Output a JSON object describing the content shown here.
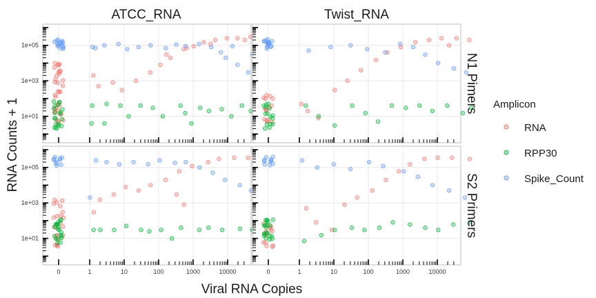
{
  "chart_data": {
    "type": "scatter",
    "xlabel": "Viral RNA Copies",
    "ylabel": "RNA Counts + 1",
    "x_scale": "log10 (with 0 shown as a separate category)",
    "y_scale": "log10",
    "x_tick_labels": [
      "0",
      "1",
      "10",
      "100",
      "1000",
      "10000"
    ],
    "y_tick_labels": [
      "1e+01",
      "1e+03",
      "1e+05"
    ],
    "ylim": [
      0.5,
      1000000
    ],
    "grid": true,
    "columns": [
      "ATCC_RNA",
      "Twist_RNA"
    ],
    "rows": [
      "N1 Pimers",
      "S2 Primers"
    ],
    "legend": {
      "title": "Amplicon",
      "position": "right",
      "items": [
        {
          "name": "RNA",
          "color": "#F8766D"
        },
        {
          "name": "RPP30",
          "color": "#00BA38"
        },
        {
          "name": "Spike_Count",
          "color": "#619CFF"
        }
      ]
    },
    "panels": [
      {
        "column": "ATCC_RNA",
        "row": "N1 Pimers",
        "series": [
          {
            "name": "RNA",
            "points": [
              [
                0,
                8000
              ],
              [
                0,
                2500
              ],
              [
                0,
                800
              ],
              [
                0,
                200
              ],
              [
                0,
                40
              ],
              [
                0,
                15
              ],
              [
                0,
                5
              ],
              [
                1.2,
                2000
              ],
              [
                2,
                500
              ],
              [
                5,
                800
              ],
              [
                8,
                300
              ],
              [
                20,
                1000
              ],
              [
                50,
                3000
              ],
              [
                100,
                8000
              ],
              [
                200,
                20000
              ],
              [
                500,
                60000
              ],
              [
                1000,
                90000
              ],
              [
                2000,
                150000
              ],
              [
                5000,
                200000
              ],
              [
                10000,
                250000
              ],
              [
                20000,
                250000
              ],
              [
                50000,
                300000
              ],
              [
                80000,
                280000
              ],
              [
                30000,
                200000
              ],
              [
                3000,
                120000
              ],
              [
                700,
                70000
              ],
              [
                150,
                30000
              ]
            ]
          },
          {
            "name": "RPP30",
            "points": [
              [
                0,
                60
              ],
              [
                0,
                20
              ],
              [
                0,
                5
              ],
              [
                0,
                2
              ],
              [
                1.3,
                40
              ],
              [
                1.3,
                4
              ],
              [
                3,
                50
              ],
              [
                3,
                4
              ],
              [
                8,
                40
              ],
              [
                15,
                10
              ],
              [
                30,
                40
              ],
              [
                70,
                30
              ],
              [
                150,
                10
              ],
              [
                400,
                40
              ],
              [
                600,
                15
              ],
              [
                1500,
                30
              ],
              [
                3000,
                20
              ],
              [
                6000,
                25
              ],
              [
                12000,
                10
              ],
              [
                25000,
                40
              ],
              [
                50000,
                20
              ],
              [
                80000,
                8
              ],
              [
                1000,
                4
              ]
            ]
          },
          {
            "name": "Spike_Count",
            "points": [
              [
                0,
                120000
              ],
              [
                0,
                150000
              ],
              [
                0,
                90000
              ],
              [
                1.1,
                80000
              ],
              [
                1.5,
                70000
              ],
              [
                3,
                100000
              ],
              [
                6,
                120000
              ],
              [
                12,
                60000
              ],
              [
                25,
                80000
              ],
              [
                60,
                100000
              ],
              [
                150,
                70000
              ],
              [
                300,
                110000
              ],
              [
                600,
                90000
              ],
              [
                1500,
                120000
              ],
              [
                3000,
                80000
              ],
              [
                6000,
                40000
              ],
              [
                10000,
                20000
              ],
              [
                20000,
                8000
              ],
              [
                40000,
                3000
              ],
              [
                80000,
                2000
              ],
              [
                50000,
                30000
              ],
              [
                15000,
                90000
              ]
            ]
          }
        ]
      },
      {
        "column": "Twist_RNA",
        "row": "N1 Pimers",
        "series": [
          {
            "name": "RNA",
            "points": [
              [
                0,
                100
              ],
              [
                0,
                30
              ],
              [
                0,
                5
              ],
              [
                1.2,
                50
              ],
              [
                2,
                20
              ],
              [
                4,
                8
              ],
              [
                10,
                300
              ],
              [
                25,
                1000
              ],
              [
                60,
                4000
              ],
              [
                150,
                15000
              ],
              [
                400,
                40000
              ],
              [
                900,
                80000
              ],
              [
                2500,
                150000
              ],
              [
                6000,
                200000
              ],
              [
                15000,
                250000
              ],
              [
                40000,
                250000
              ],
              [
                80000,
                200000
              ],
              [
                20000,
                100000
              ]
            ]
          },
          {
            "name": "RPP30",
            "points": [
              [
                0,
                40
              ],
              [
                0,
                10
              ],
              [
                0,
                3
              ],
              [
                1.5,
                40
              ],
              [
                4,
                10
              ],
              [
                10,
                3
              ],
              [
                30,
                40
              ],
              [
                80,
                15
              ],
              [
                200,
                5
              ],
              [
                500,
                40
              ],
              [
                1200,
                30
              ],
              [
                3000,
                40
              ],
              [
                8000,
                20
              ],
              [
                20000,
                40
              ],
              [
                50000,
                15
              ],
              [
                90000,
                30
              ]
            ]
          },
          {
            "name": "Spike_Count",
            "points": [
              [
                0,
                120000
              ],
              [
                0,
                150000
              ],
              [
                0,
                100000
              ],
              [
                2,
                50000
              ],
              [
                8,
                80000
              ],
              [
                30,
                100000
              ],
              [
                100,
                60000
              ],
              [
                300,
                40000
              ],
              [
                800,
                120000
              ],
              [
                2000,
                80000
              ],
              [
                5000,
                30000
              ],
              [
                12000,
                10000
              ],
              [
                30000,
                5000
              ],
              [
                70000,
                3000
              ]
            ]
          }
        ]
      },
      {
        "column": "ATCC_RNA",
        "row": "S2 Primers",
        "series": [
          {
            "name": "RNA",
            "points": [
              [
                0,
                1000
              ],
              [
                0,
                200
              ],
              [
                0,
                50
              ],
              [
                0,
                10
              ],
              [
                0,
                3
              ],
              [
                1.2,
                300
              ],
              [
                2,
                1500
              ],
              [
                5,
                3000
              ],
              [
                10,
                8000
              ],
              [
                25,
                5000
              ],
              [
                60,
                10000
              ],
              [
                150,
                20000
              ],
              [
                400,
                60000
              ],
              [
                1000,
                120000
              ],
              [
                2500,
                200000
              ],
              [
                6000,
                300000
              ],
              [
                15000,
                350000
              ],
              [
                40000,
                350000
              ],
              [
                80000,
                300000
              ],
              [
                300,
                3000
              ],
              [
                600,
                800
              ]
            ]
          },
          {
            "name": "RPP30",
            "points": [
              [
                0,
                80
              ],
              [
                0,
                40
              ],
              [
                0,
                20
              ],
              [
                0,
                8
              ],
              [
                1.2,
                30
              ],
              [
                2,
                30
              ],
              [
                5,
                30
              ],
              [
                12,
                50
              ],
              [
                30,
                30
              ],
              [
                60,
                25
              ],
              [
                120,
                30
              ],
              [
                250,
                10
              ],
              [
                500,
                40
              ],
              [
                1500,
                30
              ],
              [
                3000,
                40
              ],
              [
                8000,
                30
              ],
              [
                20000,
                35
              ],
              [
                50000,
                30
              ],
              [
                80000,
                25
              ]
            ]
          },
          {
            "name": "Spike_Count",
            "points": [
              [
                0,
                250000
              ],
              [
                0,
                200000
              ],
              [
                1.1,
                2000
              ],
              [
                1.5,
                250000
              ],
              [
                3,
                200000
              ],
              [
                8,
                150000
              ],
              [
                20,
                200000
              ],
              [
                50,
                150000
              ],
              [
                120,
                250000
              ],
              [
                300,
                180000
              ],
              [
                700,
                200000
              ],
              [
                1500,
                100000
              ],
              [
                3500,
                50000
              ],
              [
                8000,
                20000
              ],
              [
                20000,
                10000
              ],
              [
                50000,
                5000
              ],
              [
                80000,
                2000
              ]
            ]
          }
        ]
      },
      {
        "column": "Twist_RNA",
        "row": "S2 Primers",
        "series": [
          {
            "name": "RNA",
            "points": [
              [
                0,
                50
              ],
              [
                0,
                20
              ],
              [
                0,
                5
              ],
              [
                1.5,
                500
              ],
              [
                3,
                80
              ],
              [
                8,
                30
              ],
              [
                20,
                800
              ],
              [
                50,
                2000
              ],
              [
                120,
                5000
              ],
              [
                300,
                20000
              ],
              [
                700,
                60000
              ],
              [
                1500,
                150000
              ],
              [
                4000,
                300000
              ],
              [
                10000,
                350000
              ],
              [
                30000,
                350000
              ],
              [
                80000,
                300000
              ]
            ]
          },
          {
            "name": "RPP30",
            "points": [
              [
                0,
                80
              ],
              [
                0,
                40
              ],
              [
                0,
                20
              ],
              [
                0,
                10
              ],
              [
                1.5,
                7
              ],
              [
                4,
                15
              ],
              [
                10,
                30
              ],
              [
                30,
                40
              ],
              [
                80,
                30
              ],
              [
                200,
                40
              ],
              [
                500,
                80
              ],
              [
                1500,
                60
              ],
              [
                4000,
                40
              ],
              [
                10000,
                30
              ],
              [
                30000,
                60
              ],
              [
                80000,
                80
              ]
            ]
          },
          {
            "name": "Spike_Count",
            "points": [
              [
                0,
                250000
              ],
              [
                0,
                200000
              ],
              [
                1.1,
                250000
              ],
              [
                3,
                100000
              ],
              [
                10,
                150000
              ],
              [
                30,
                80000
              ],
              [
                100,
                200000
              ],
              [
                300,
                120000
              ],
              [
                1000,
                60000
              ],
              [
                3000,
                30000
              ],
              [
                8000,
                10000
              ],
              [
                20000,
                5000
              ],
              [
                60000,
                2000
              ]
            ]
          }
        ]
      }
    ]
  }
}
